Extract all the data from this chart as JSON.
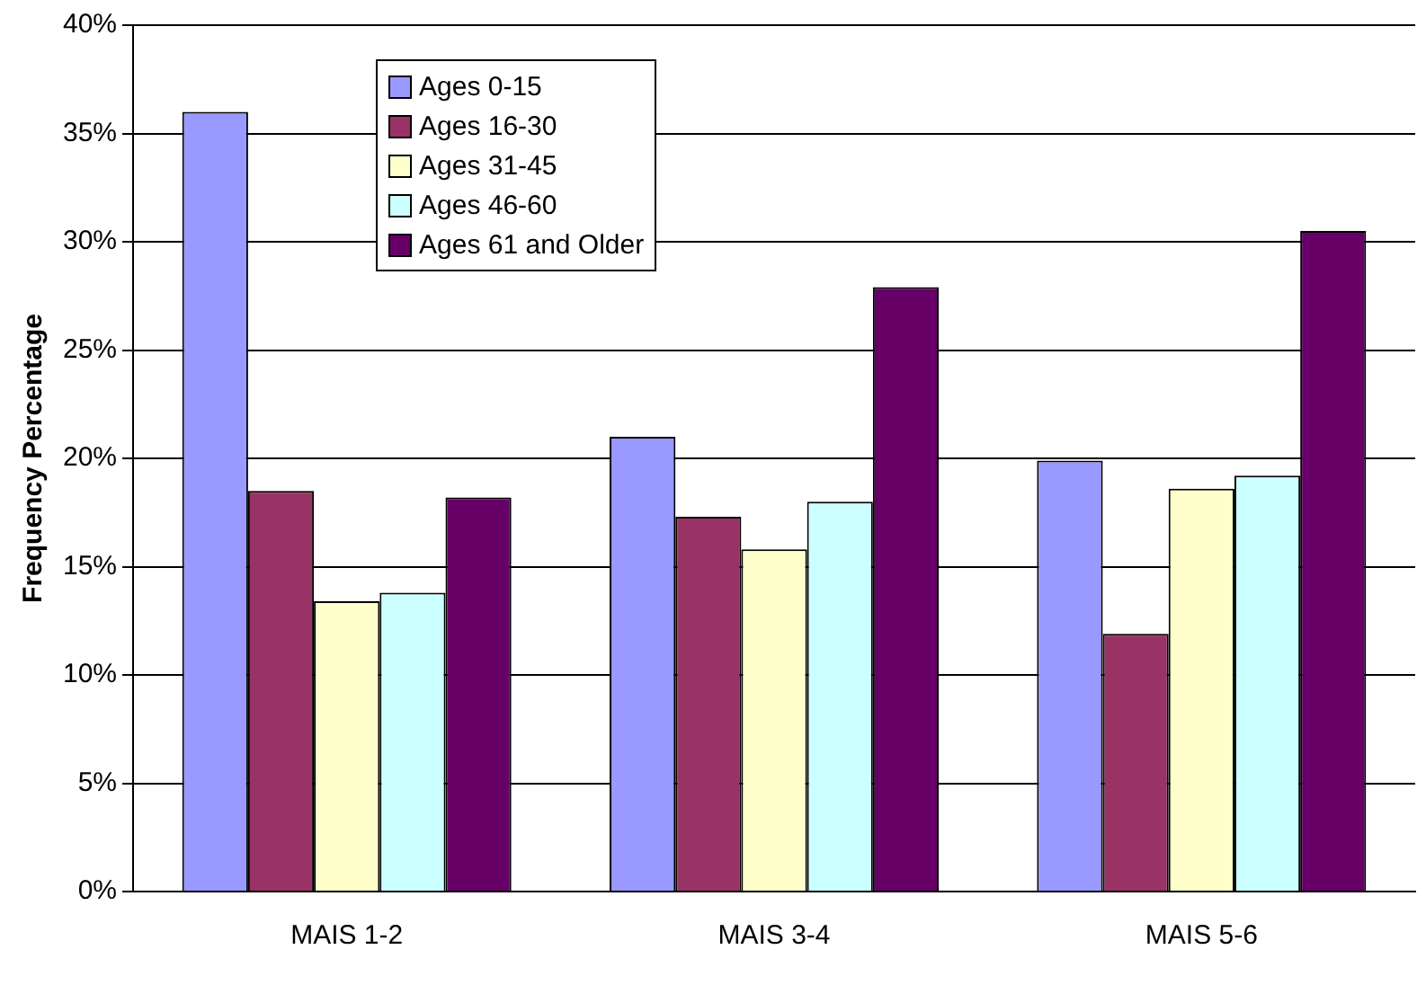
{
  "chart_data": {
    "type": "bar",
    "ylabel": "Frequency Percentage",
    "categories": [
      "MAIS 1-2",
      "MAIS 3-4",
      "MAIS 5-6"
    ],
    "series": [
      {
        "name": "Ages 0-15",
        "color": "#9999ff",
        "values": [
          36.0,
          21.0,
          19.9
        ]
      },
      {
        "name": "Ages 16-30",
        "color": "#993366",
        "values": [
          18.5,
          17.3,
          11.9
        ]
      },
      {
        "name": "Ages 31-45",
        "color": "#ffffcc",
        "values": [
          13.4,
          15.8,
          18.6
        ]
      },
      {
        "name": "Ages 46-60",
        "color": "#ccffff",
        "values": [
          13.8,
          18.0,
          19.2
        ]
      },
      {
        "name": "Ages 61 and Older",
        "color": "#660066",
        "values": [
          18.2,
          27.9,
          30.5
        ]
      }
    ],
    "ylim": [
      0,
      40
    ],
    "yticks": [
      {
        "value": 0,
        "label": "0%"
      },
      {
        "value": 5,
        "label": "5%"
      },
      {
        "value": 10,
        "label": "10%"
      },
      {
        "value": 15,
        "label": "15%"
      },
      {
        "value": 20,
        "label": "20%"
      },
      {
        "value": 25,
        "label": "25%"
      },
      {
        "value": 30,
        "label": "30%"
      },
      {
        "value": 35,
        "label": "35%"
      },
      {
        "value": 40,
        "label": "40%"
      }
    ],
    "grid": "y",
    "legend": "top left"
  }
}
